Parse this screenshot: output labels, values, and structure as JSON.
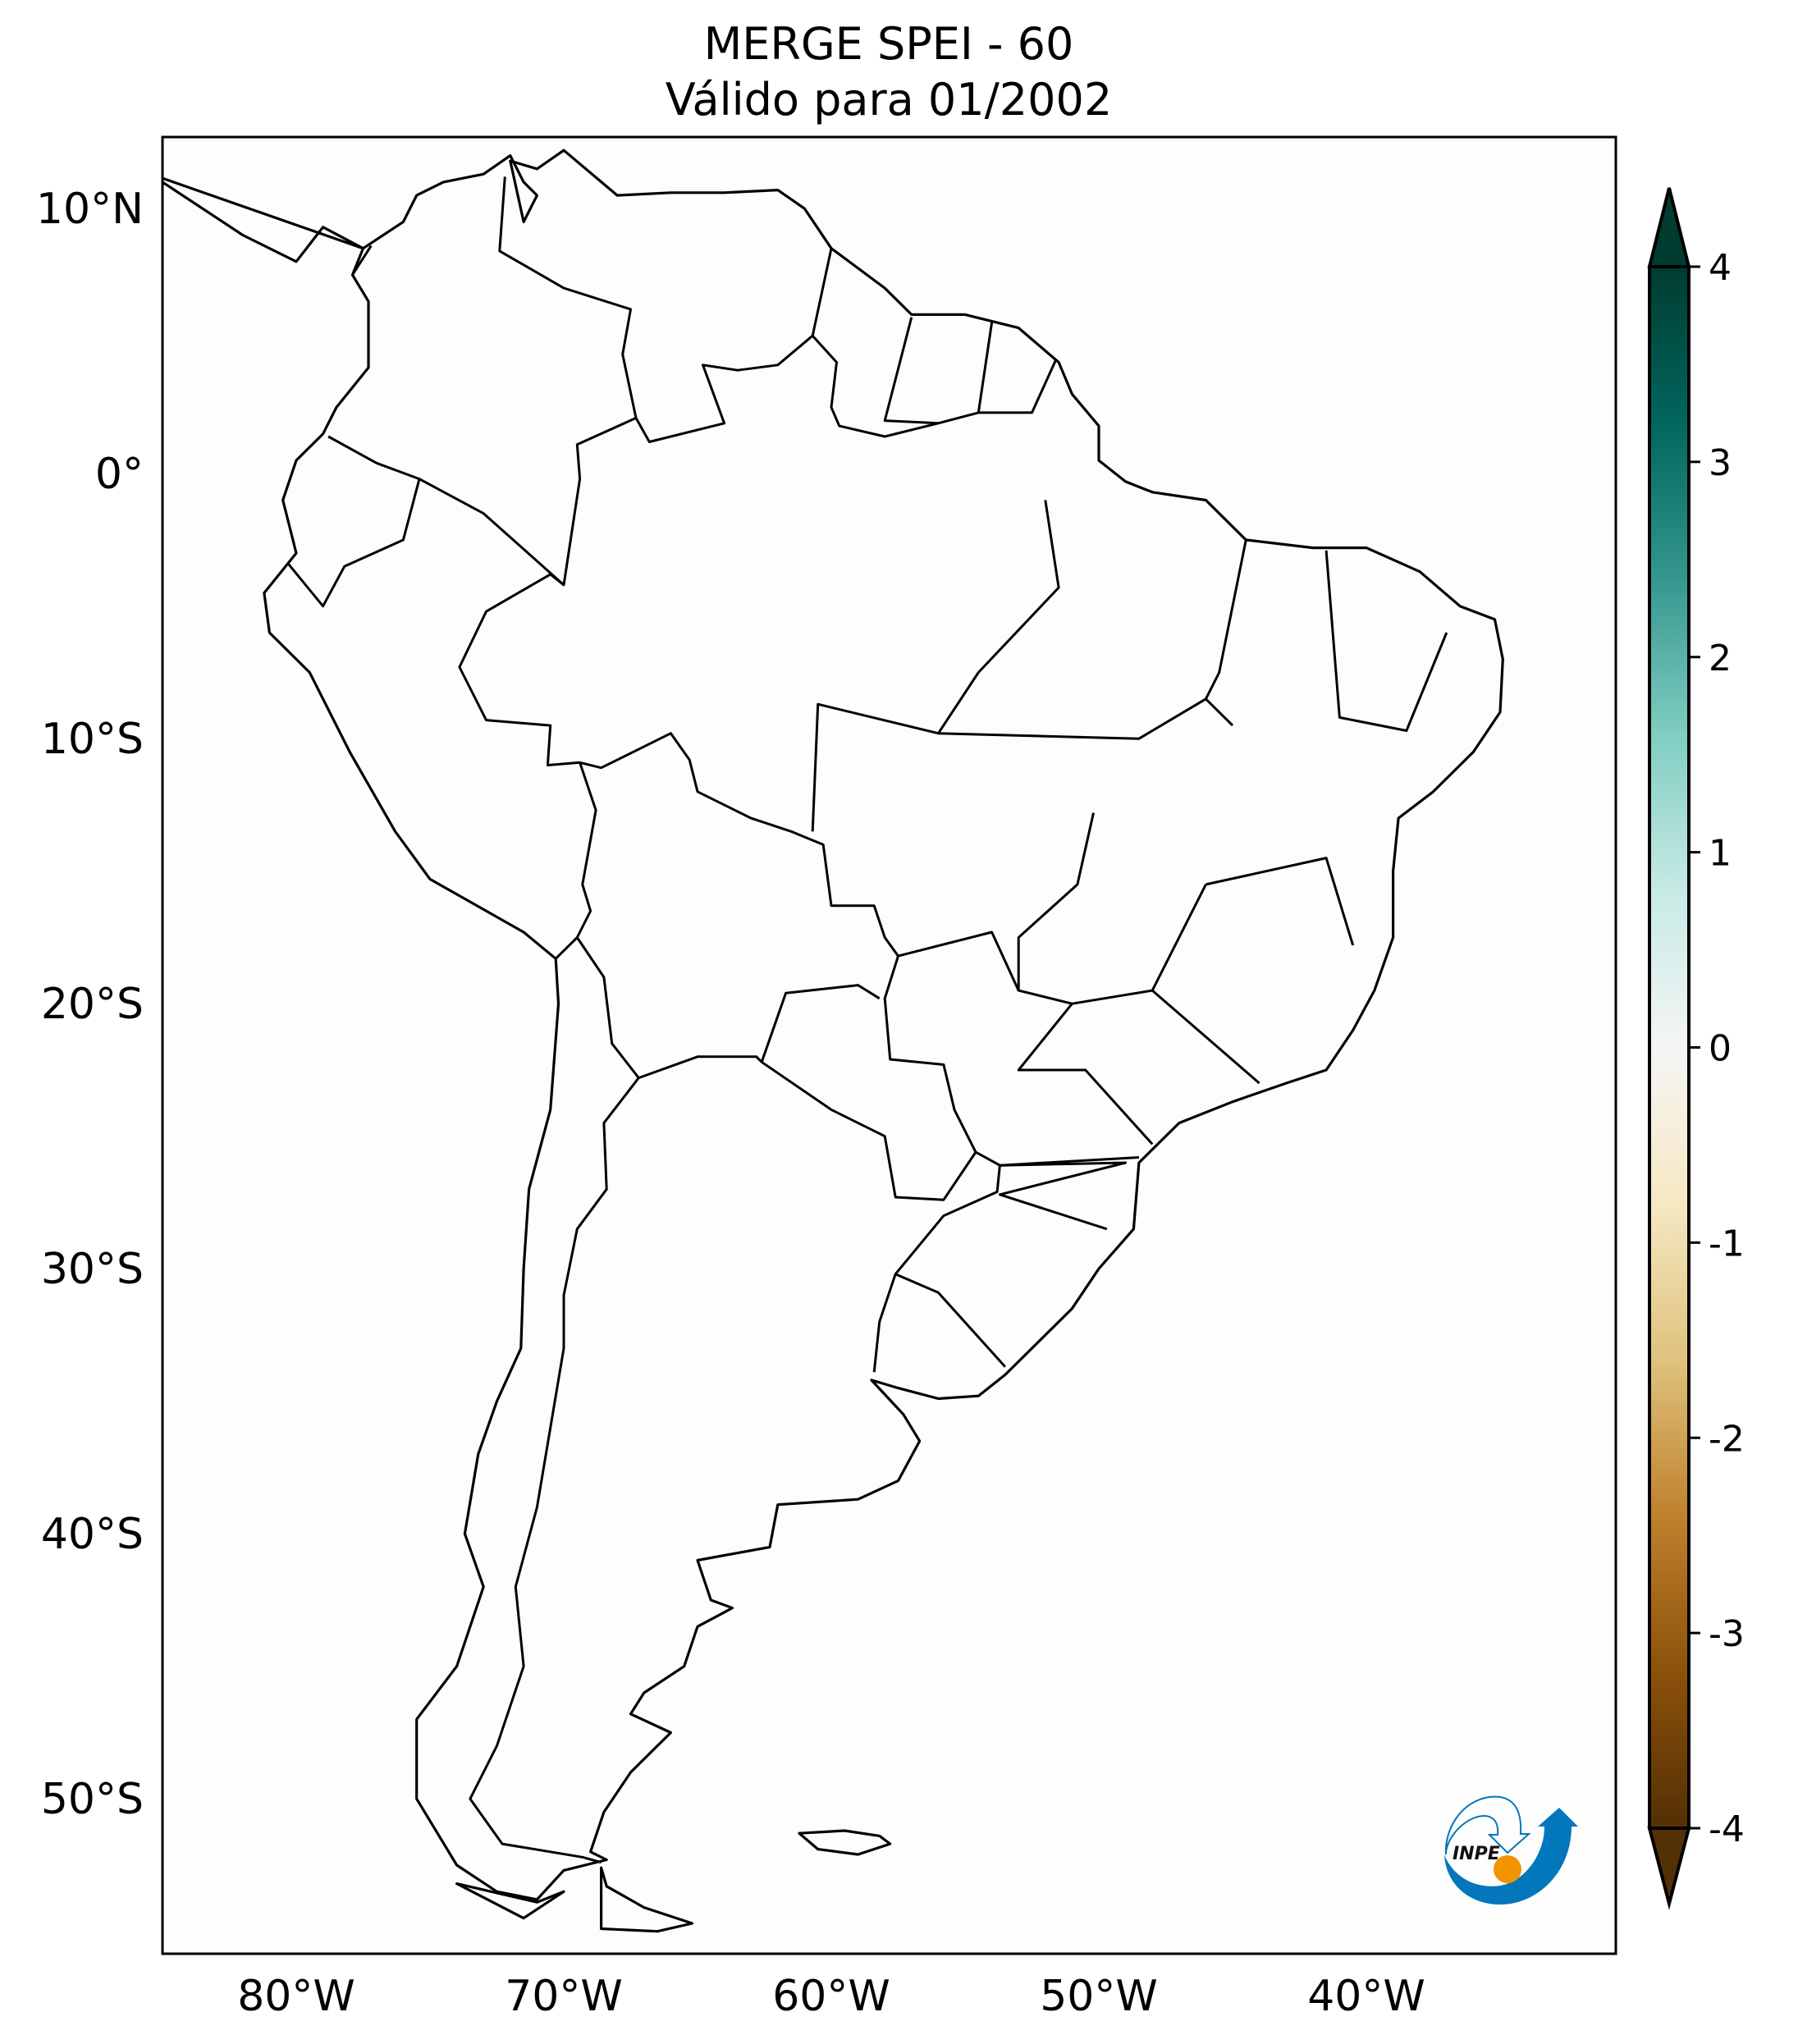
{
  "title": {
    "line1": "MERGE   SPEI - 60",
    "line2": "Válido para 01/2002"
  },
  "map": {
    "lon_range": [
      -85,
      -31
    ],
    "lat_range": [
      -56,
      12.7
    ],
    "x_ticks": [
      {
        "lon": -80,
        "label": "80°W"
      },
      {
        "lon": -70,
        "label": "70°W"
      },
      {
        "lon": -60,
        "label": "60°W"
      },
      {
        "lon": -50,
        "label": "50°W"
      },
      {
        "lon": -40,
        "label": "40°W"
      }
    ],
    "y_ticks": [
      {
        "lat": 10,
        "label": "10°N"
      },
      {
        "lat": 0,
        "label": "0°"
      },
      {
        "lat": -10,
        "label": "10°S"
      },
      {
        "lat": -20,
        "label": "20°S"
      },
      {
        "lat": -30,
        "label": "30°S"
      },
      {
        "lat": -40,
        "label": "40°S"
      },
      {
        "lat": -50,
        "label": "50°S"
      }
    ],
    "field_fill": "#fdfdfd"
  },
  "colorbar": {
    "colormap": "BrBG",
    "extend": "both",
    "range": [
      -4,
      4
    ],
    "ticks": [
      {
        "value": 4,
        "label": "4"
      },
      {
        "value": 3,
        "label": "3"
      },
      {
        "value": 2,
        "label": "2"
      },
      {
        "value": 1,
        "label": "1"
      },
      {
        "value": 0,
        "label": "0"
      },
      {
        "value": -1,
        "label": "-1"
      },
      {
        "value": -2,
        "label": "-2"
      },
      {
        "value": -3,
        "label": "-3"
      },
      {
        "value": -4,
        "label": "-4"
      }
    ]
  },
  "logo": {
    "text": "INPE",
    "colors": {
      "blue": "#0277bb",
      "orange": "#f29400"
    }
  }
}
